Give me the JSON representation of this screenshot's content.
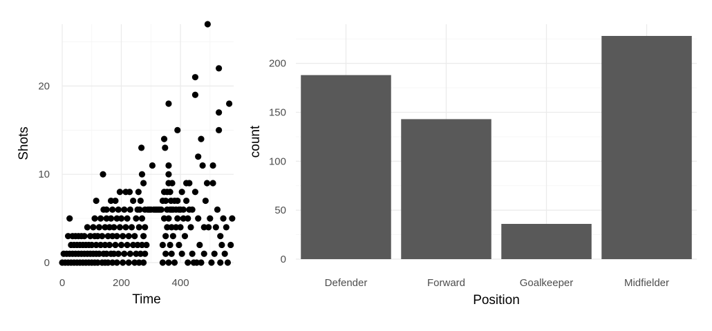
{
  "chart_data": [
    {
      "type": "scatter",
      "title": "",
      "xlabel": "Time",
      "ylabel": "Shots",
      "xlim": [
        0,
        580
      ],
      "ylim": [
        0,
        27
      ],
      "xticks": [
        0,
        200,
        400
      ],
      "yticks": [
        0,
        10,
        20
      ],
      "grid": true,
      "point_color": "#000000",
      "points": [
        [
          0,
          0
        ],
        [
          5,
          1
        ],
        [
          10,
          0
        ],
        [
          15,
          1
        ],
        [
          20,
          0
        ],
        [
          20,
          3
        ],
        [
          25,
          1
        ],
        [
          25,
          5
        ],
        [
          30,
          0
        ],
        [
          30,
          2
        ],
        [
          35,
          1
        ],
        [
          35,
          3
        ],
        [
          40,
          0
        ],
        [
          40,
          2
        ],
        [
          45,
          1
        ],
        [
          45,
          3
        ],
        [
          50,
          0
        ],
        [
          50,
          2
        ],
        [
          55,
          1
        ],
        [
          55,
          3
        ],
        [
          60,
          0
        ],
        [
          60,
          2
        ],
        [
          65,
          1
        ],
        [
          65,
          3
        ],
        [
          70,
          0
        ],
        [
          70,
          2
        ],
        [
          75,
          1
        ],
        [
          75,
          3
        ],
        [
          80,
          0
        ],
        [
          80,
          2
        ],
        [
          85,
          1
        ],
        [
          85,
          4
        ],
        [
          90,
          0
        ],
        [
          90,
          2
        ],
        [
          95,
          1
        ],
        [
          95,
          3
        ],
        [
          100,
          0
        ],
        [
          100,
          2
        ],
        [
          105,
          4
        ],
        [
          105,
          1
        ],
        [
          110,
          0
        ],
        [
          110,
          3
        ],
        [
          110,
          5
        ],
        [
          115,
          1
        ],
        [
          115,
          2
        ],
        [
          115,
          7
        ],
        [
          120,
          0
        ],
        [
          120,
          3
        ],
        [
          125,
          1
        ],
        [
          125,
          4
        ],
        [
          130,
          2
        ],
        [
          130,
          5
        ],
        [
          135,
          0
        ],
        [
          135,
          3
        ],
        [
          138,
          10
        ],
        [
          140,
          1
        ],
        [
          140,
          6
        ],
        [
          145,
          0
        ],
        [
          145,
          2
        ],
        [
          145,
          4
        ],
        [
          150,
          1
        ],
        [
          150,
          5
        ],
        [
          150,
          6
        ],
        [
          155,
          3
        ],
        [
          155,
          0
        ],
        [
          160,
          2
        ],
        [
          160,
          4
        ],
        [
          165,
          1
        ],
        [
          165,
          5
        ],
        [
          165,
          7
        ],
        [
          170,
          0
        ],
        [
          170,
          3
        ],
        [
          170,
          6
        ],
        [
          175,
          1
        ],
        [
          175,
          4
        ],
        [
          180,
          2
        ],
        [
          180,
          7
        ],
        [
          185,
          0
        ],
        [
          185,
          3
        ],
        [
          185,
          5
        ],
        [
          190,
          1
        ],
        [
          190,
          6
        ],
        [
          195,
          4
        ],
        [
          195,
          8
        ],
        [
          200,
          2
        ],
        [
          200,
          5
        ],
        [
          205,
          0
        ],
        [
          205,
          3
        ],
        [
          210,
          1
        ],
        [
          210,
          6
        ],
        [
          215,
          4
        ],
        [
          215,
          8
        ],
        [
          220,
          2
        ],
        [
          220,
          5
        ],
        [
          225,
          0
        ],
        [
          225,
          3
        ],
        [
          228,
          8
        ],
        [
          230,
          1
        ],
        [
          230,
          6
        ],
        [
          235,
          4
        ],
        [
          240,
          2
        ],
        [
          240,
          7
        ],
        [
          245,
          0
        ],
        [
          245,
          3
        ],
        [
          250,
          1
        ],
        [
          250,
          5
        ],
        [
          255,
          6
        ],
        [
          255,
          2
        ],
        [
          258,
          8
        ],
        [
          260,
          0
        ],
        [
          260,
          4
        ],
        [
          262,
          6
        ],
        [
          265,
          1
        ],
        [
          265,
          7
        ],
        [
          268,
          13
        ],
        [
          270,
          2
        ],
        [
          270,
          5
        ],
        [
          270,
          10
        ],
        [
          275,
          0
        ],
        [
          275,
          3
        ],
        [
          275,
          9
        ],
        [
          280,
          1
        ],
        [
          280,
          4
        ],
        [
          280,
          6
        ],
        [
          285,
          2
        ],
        [
          290,
          6
        ],
        [
          295,
          6
        ],
        [
          300,
          6
        ],
        [
          305,
          11
        ],
        [
          310,
          6
        ],
        [
          315,
          6
        ],
        [
          320,
          6
        ],
        [
          325,
          6
        ],
        [
          330,
          6
        ],
        [
          335,
          6
        ],
        [
          340,
          7
        ],
        [
          340,
          2
        ],
        [
          340,
          0
        ],
        [
          345,
          8
        ],
        [
          345,
          5
        ],
        [
          345,
          14
        ],
        [
          348,
          13
        ],
        [
          350,
          7
        ],
        [
          350,
          3
        ],
        [
          350,
          1
        ],
        [
          355,
          8
        ],
        [
          355,
          6
        ],
        [
          355,
          4
        ],
        [
          360,
          11
        ],
        [
          360,
          10
        ],
        [
          360,
          9
        ],
        [
          360,
          18
        ],
        [
          360,
          5
        ],
        [
          360,
          0
        ],
        [
          365,
          8
        ],
        [
          365,
          6
        ],
        [
          365,
          2
        ],
        [
          368,
          7
        ],
        [
          370,
          6
        ],
        [
          370,
          4
        ],
        [
          370,
          1
        ],
        [
          372,
          9
        ],
        [
          375,
          6
        ],
        [
          375,
          3
        ],
        [
          380,
          7
        ],
        [
          380,
          0
        ],
        [
          385,
          6
        ],
        [
          385,
          4
        ],
        [
          390,
          15
        ],
        [
          390,
          7
        ],
        [
          390,
          5
        ],
        [
          395,
          6
        ],
        [
          395,
          2
        ],
        [
          400,
          6
        ],
        [
          400,
          4
        ],
        [
          405,
          1
        ],
        [
          405,
          8
        ],
        [
          410,
          6
        ],
        [
          410,
          5
        ],
        [
          415,
          3
        ],
        [
          420,
          9
        ],
        [
          420,
          7
        ],
        [
          425,
          5
        ],
        [
          425,
          0
        ],
        [
          430,
          9
        ],
        [
          430,
          6
        ],
        [
          435,
          4
        ],
        [
          440,
          1
        ],
        [
          440,
          6
        ],
        [
          445,
          0
        ],
        [
          450,
          21
        ],
        [
          450,
          19
        ],
        [
          450,
          8
        ],
        [
          455,
          0
        ],
        [
          460,
          12
        ],
        [
          460,
          5
        ],
        [
          465,
          2
        ],
        [
          470,
          14
        ],
        [
          470,
          0
        ],
        [
          475,
          11
        ],
        [
          480,
          4
        ],
        [
          480,
          1
        ],
        [
          485,
          7
        ],
        [
          490,
          9
        ],
        [
          492,
          27
        ],
        [
          495,
          4
        ],
        [
          500,
          5
        ],
        [
          505,
          0
        ],
        [
          510,
          11
        ],
        [
          510,
          9
        ],
        [
          515,
          1
        ],
        [
          520,
          4
        ],
        [
          525,
          6
        ],
        [
          530,
          22
        ],
        [
          530,
          17
        ],
        [
          530,
          15
        ],
        [
          535,
          3
        ],
        [
          535,
          0
        ],
        [
          540,
          2
        ],
        [
          545,
          5
        ],
        [
          550,
          1
        ],
        [
          555,
          4
        ],
        [
          560,
          0
        ],
        [
          565,
          18
        ],
        [
          570,
          2
        ],
        [
          575,
          5
        ]
      ]
    },
    {
      "type": "bar",
      "title": "",
      "xlabel": "Position",
      "ylabel": "count",
      "categories": [
        "Defender",
        "Forward",
        "Goalkeeper",
        "Midfielder"
      ],
      "values": [
        188,
        143,
        36,
        228
      ],
      "ylim": [
        0,
        240
      ],
      "yticks": [
        0,
        50,
        100,
        150,
        200
      ],
      "grid": true,
      "bar_color": "#595959"
    }
  ]
}
